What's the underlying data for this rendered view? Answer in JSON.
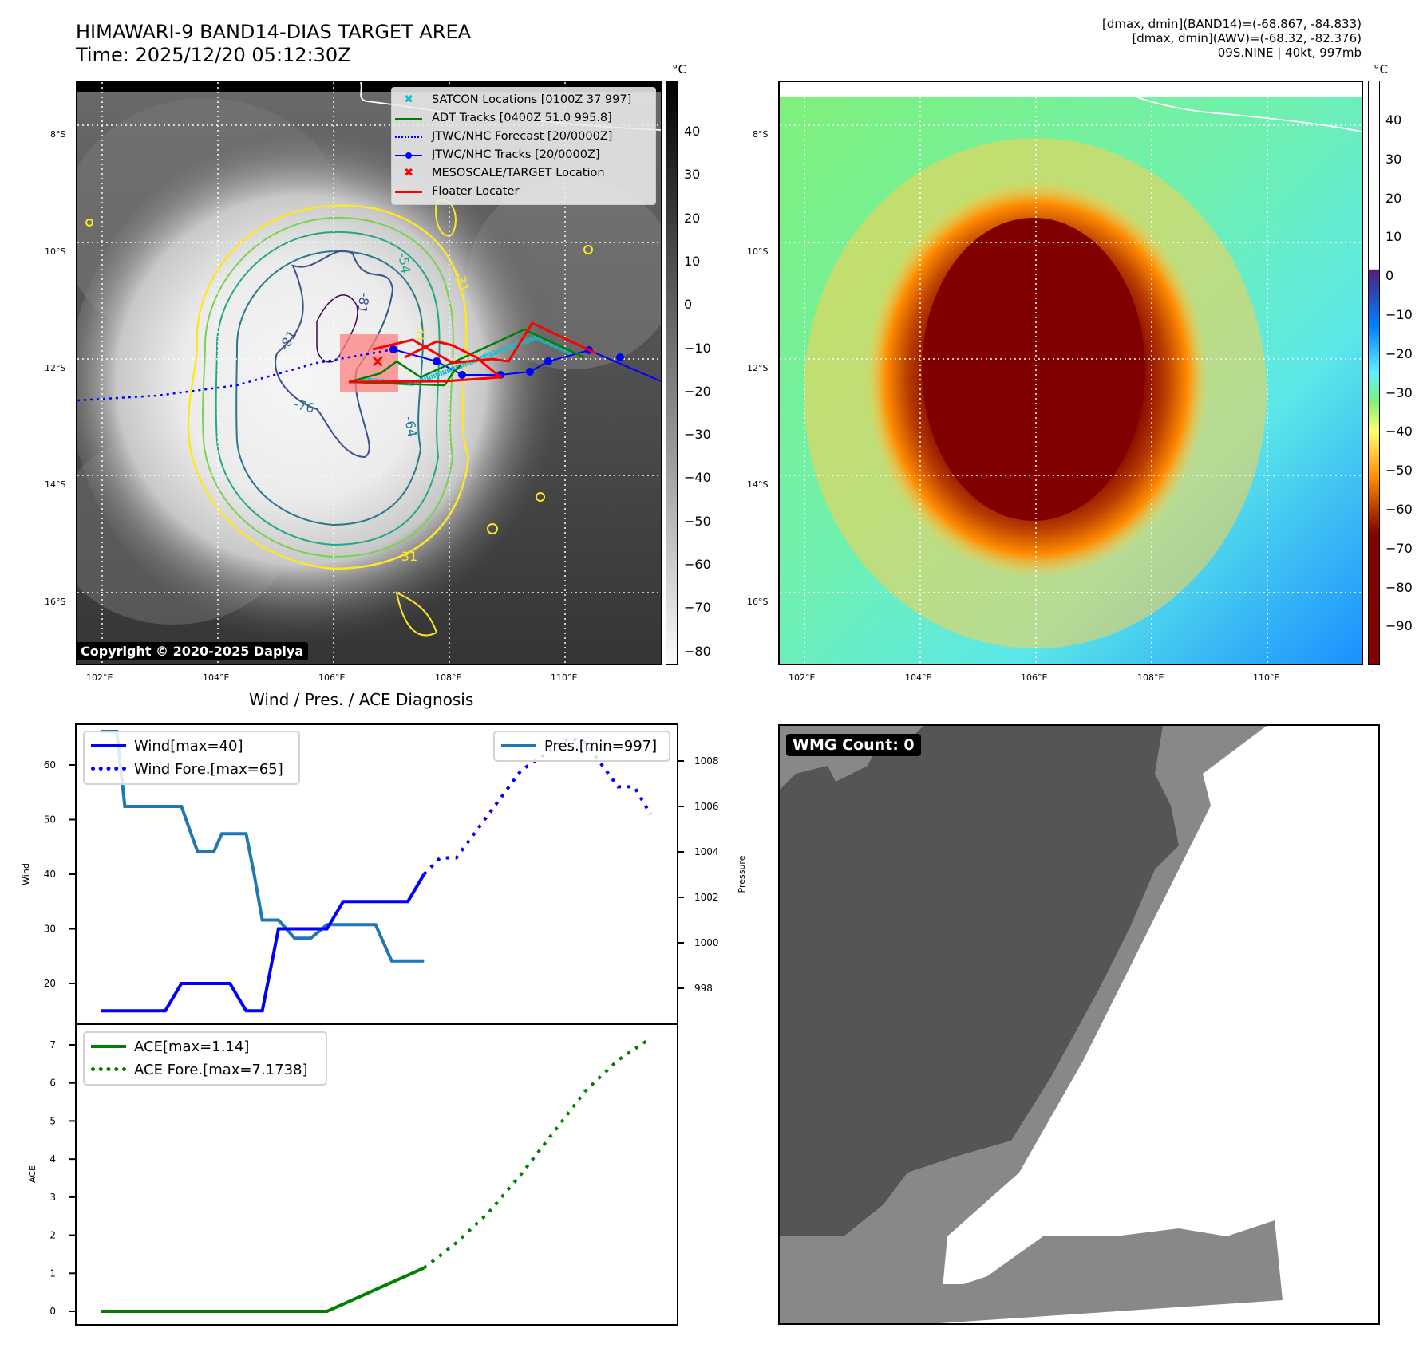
{
  "header": {
    "title_line1": "HIMAWARI-9 BAND14-DIAS TARGET AREA",
    "title_line2": "Time: 2025/12/20 05:12:30Z",
    "info_line1": "[dmax, dmin](BAND14)=(-68.867, -84.833)",
    "info_line2": "[dmax, dmin](AWV)=(-68.32, -82.376)",
    "info_line3": "09S.NINE | 40kt, 997mb"
  },
  "map": {
    "lon_ticks": [
      "102°E",
      "104°E",
      "106°E",
      "108°E",
      "110°E"
    ],
    "lat_ticks": [
      "8°S",
      "10°S",
      "12°S",
      "14°S",
      "16°S"
    ],
    "copyright": "Copyright © 2020-2025 Dapiya",
    "contour_labels": [
      "-54",
      "-31",
      "-31",
      "-81",
      "-81",
      "-76",
      "-64",
      "-31",
      "-31"
    ],
    "legend": [
      {
        "label": "SATCON Locations [0100Z 37 997]",
        "color": "#17becf",
        "marker": "x"
      },
      {
        "label": "ADT Tracks [0400Z 51.0 995.8]",
        "color": "#008000",
        "marker": "line"
      },
      {
        "label": "JTWC/NHC Forecast [20/0000Z]",
        "color": "#0000ff",
        "marker": "dotted"
      },
      {
        "label": "JTWC/NHC Tracks [20/0000Z]",
        "color": "#0000ff",
        "marker": "line-dot"
      },
      {
        "label": "MESOSCALE/TARGET Location",
        "color": "#ff0000",
        "marker": "x"
      },
      {
        "label": "Floater Locater",
        "color": "#ff0000",
        "marker": "line"
      }
    ]
  },
  "colorbar_gray": {
    "unit": "°C",
    "ticks": [
      "40",
      "30",
      "20",
      "10",
      "0",
      "−10",
      "−20",
      "−30",
      "−40",
      "−50",
      "−60",
      "−70",
      "−80"
    ]
  },
  "colorbar_color": {
    "unit": "°C",
    "ticks": [
      "40",
      "30",
      "20",
      "10",
      "0",
      "−10",
      "−20",
      "−30",
      "−40",
      "−50",
      "−60",
      "−70",
      "−80",
      "−90"
    ]
  },
  "diagnosis_title": "Wind / Pres. / ACE Diagnosis",
  "wmg": {
    "label": "WMG Count: 0"
  },
  "chart_data": [
    {
      "type": "line",
      "title": "Wind / Pres. / ACE Diagnosis",
      "ylabel": "Wind",
      "y2label": "Pressure",
      "ylim": [
        13,
        67
      ],
      "y2lim": [
        996.2,
        1009.4
      ],
      "yticks": [
        "20",
        "30",
        "40",
        "50",
        "60"
      ],
      "y2ticks": [
        "998",
        "1000",
        "1002",
        "1004",
        "1006",
        "1008"
      ],
      "x": [
        0,
        1,
        2,
        3,
        4,
        5,
        6,
        7,
        8,
        9,
        10,
        11,
        12,
        13,
        14,
        15,
        16,
        17,
        18,
        19,
        20,
        21,
        22,
        23,
        24,
        25,
        26,
        27,
        28,
        29,
        30,
        31,
        32,
        33,
        34
      ],
      "series": [
        {
          "name": "Wind[max=40]",
          "color": "#0000ff",
          "style": "solid",
          "x": [
            0,
            4,
            5,
            8,
            9,
            10,
            11,
            12,
            13,
            14,
            15,
            16,
            17,
            18,
            19,
            20
          ],
          "values": [
            15,
            15,
            20,
            20,
            15,
            15,
            30,
            30,
            30,
            30,
            35,
            35,
            35,
            35,
            35,
            40
          ]
        },
        {
          "name": "Wind Fore.[max=65]",
          "color": "#0000ff",
          "style": "dotted",
          "x": [
            20,
            21,
            22,
            23,
            24,
            25,
            26,
            27,
            28,
            29,
            30,
            31,
            32,
            33,
            34
          ],
          "values": [
            40,
            43,
            43,
            47,
            51,
            55,
            59,
            61,
            63,
            65,
            64,
            60,
            56,
            56,
            51
          ]
        },
        {
          "name": "Pres.[min=997]",
          "color": "#1f77b4",
          "style": "solid",
          "axis": "y2",
          "x": [
            0,
            1,
            1.5,
            2,
            5,
            6,
            7,
            7.5,
            8,
            9,
            9.5,
            10,
            11,
            12,
            13,
            14,
            15,
            16,
            17,
            18,
            19,
            20
          ],
          "values": [
            1009.3,
            1009.3,
            1006,
            1006,
            1006,
            1004,
            1004,
            1004.8,
            1004.8,
            1004.8,
            1003,
            1001,
            1001,
            1000.2,
            1000.2,
            1000.8,
            1000.8,
            1000.8,
            1000.8,
            999.2,
            999.2,
            999.2
          ]
        }
      ]
    },
    {
      "type": "line",
      "ylabel": "ACE",
      "ylim": [
        -0.2,
        7.6
      ],
      "yticks": [
        "0",
        "1",
        "2",
        "3",
        "4",
        "5",
        "6",
        "7"
      ],
      "series": [
        {
          "name": "ACE[max=1.14]",
          "color": "#008000",
          "style": "solid",
          "x": [
            0,
            14,
            20
          ],
          "values": [
            0,
            0,
            1.14
          ]
        },
        {
          "name": "ACE Fore.[max=7.1738]",
          "color": "#008000",
          "style": "dotted",
          "x": [
            20,
            22,
            24,
            26,
            28,
            30,
            32,
            34
          ],
          "values": [
            1.14,
            1.8,
            2.6,
            3.6,
            4.7,
            5.8,
            6.6,
            7.17
          ]
        }
      ]
    }
  ]
}
